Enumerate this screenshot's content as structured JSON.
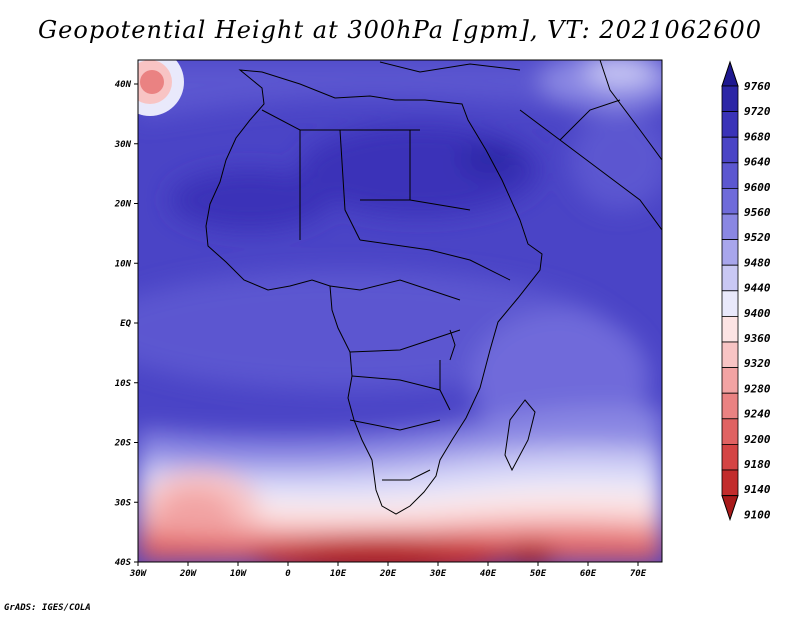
{
  "title": "Geopotential Height at 300hPa [gpm], VT: 2021062600",
  "credit": "GrADS: IGES/COLA",
  "x_ticks": [
    "30W",
    "20W",
    "10W",
    "0",
    "10E",
    "20E",
    "30E",
    "40E",
    "50E",
    "60E",
    "70E"
  ],
  "y_ticks": [
    "40N",
    "30N",
    "20N",
    "10N",
    "EQ",
    "10S",
    "20S",
    "30S",
    "40S"
  ],
  "colorbar": {
    "labels": [
      "9760",
      "9720",
      "9680",
      "9640",
      "9600",
      "9560",
      "9520",
      "9480",
      "9440",
      "9400",
      "9360",
      "9320",
      "9280",
      "9240",
      "9200",
      "9180",
      "9140",
      "9100"
    ],
    "colors": [
      "#1e1890",
      "#2c26a6",
      "#3a33b8",
      "#4a44c6",
      "#5c57d0",
      "#6f6bda",
      "#8a87e3",
      "#a8a6ec",
      "#c9c8f4",
      "#e9e9fb",
      "#fde4e4",
      "#f8c4c4",
      "#f2a3a3",
      "#ea8282",
      "#e06262",
      "#d44444",
      "#c22c2c",
      "#a81a1a"
    ]
  }
}
